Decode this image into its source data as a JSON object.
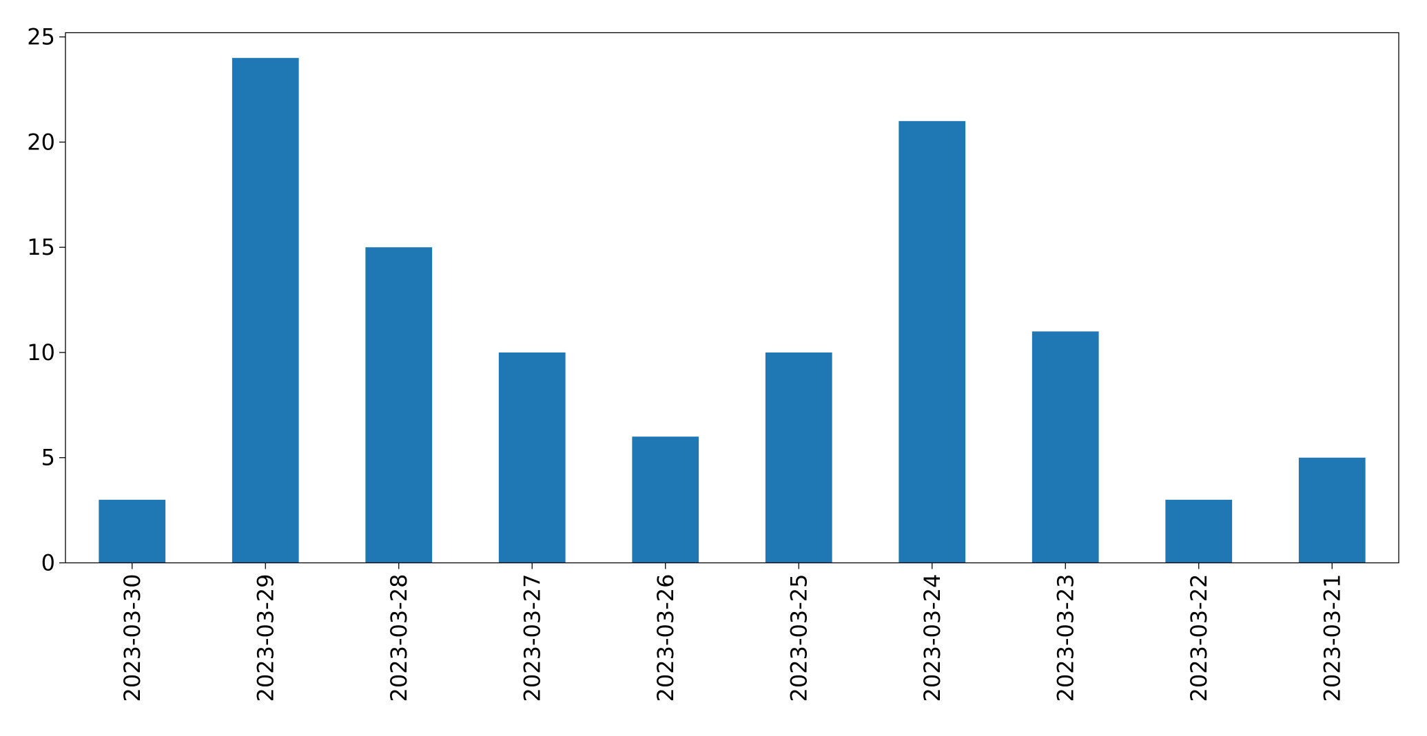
{
  "chart_data": {
    "type": "bar",
    "categories": [
      "2023-03-30",
      "2023-03-29",
      "2023-03-28",
      "2023-03-27",
      "2023-03-26",
      "2023-03-25",
      "2023-03-24",
      "2023-03-23",
      "2023-03-22",
      "2023-03-21"
    ],
    "values": [
      3,
      24,
      15,
      10,
      6,
      10,
      21,
      11,
      3,
      5
    ],
    "color": "#1f77b4",
    "ylim": [
      0,
      25.2
    ],
    "yticks": [
      0,
      5,
      10,
      15,
      20,
      25
    ],
    "grid": false
  }
}
